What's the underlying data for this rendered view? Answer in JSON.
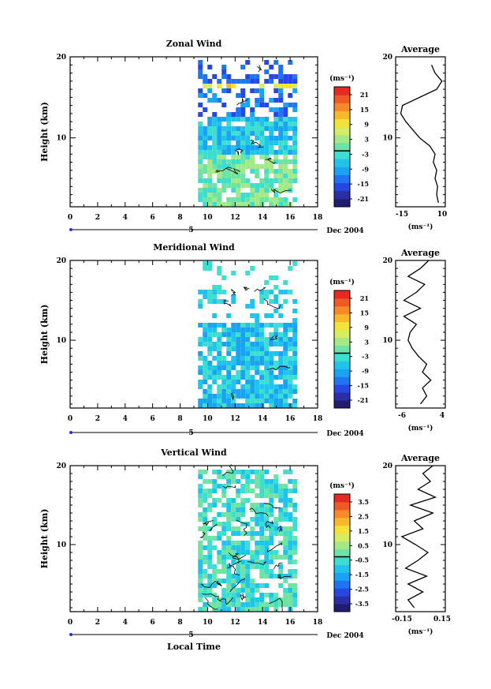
{
  "footer_label": "Local Time",
  "date_label": "Dec 2004",
  "day_marker": "5",
  "ylabel": "Height (km)",
  "avg_title": "Average",
  "unit_label": "(ms⁻¹)",
  "panel_titles": [
    "Zonal Wind",
    "Meridional Wind",
    "Vertical Wind"
  ],
  "colors": {
    "palette": [
      "#221c6e",
      "#2a2fa8",
      "#2747e0",
      "#1f74f0",
      "#1ca2f2",
      "#22c3ea",
      "#3fdcd0",
      "#6ee3a3",
      "#a5e887",
      "#d6ec62",
      "#f2e33a",
      "#f7b82c",
      "#f68a2a",
      "#ee5a26",
      "#e42a22"
    ]
  },
  "chart_data": [
    {
      "type": "heatmap",
      "title": "Zonal Wind",
      "xlabel": "",
      "ylabel": "Height (km)",
      "xlim": [
        0,
        18
      ],
      "ylim": [
        1.5,
        20
      ],
      "xticks": [
        "0",
        "2",
        "4",
        "6",
        "8",
        "10",
        "12",
        "14",
        "16",
        "18"
      ],
      "yticks": [
        "10",
        "20"
      ],
      "data_extent_x": [
        9.3,
        16.6
      ],
      "colorbar": {
        "label": "(ms⁻¹)",
        "ticks": [
          "21",
          "15",
          "9",
          "3",
          "-3",
          "-9",
          "-15",
          "-21"
        ]
      },
      "profile": {
        "title": "Average",
        "xlim": [
          -18,
          11
        ],
        "xticks": [
          "-15",
          "10"
        ],
        "xlabel": "(ms⁻¹)",
        "yticks": [
          "10",
          "20"
        ],
        "points": [
          [
            7,
            2
          ],
          [
            6,
            3
          ],
          [
            6.5,
            4
          ],
          [
            5,
            5
          ],
          [
            6,
            6
          ],
          [
            4,
            7
          ],
          [
            5,
            8
          ],
          [
            2,
            9
          ],
          [
            -4,
            10
          ],
          [
            -8,
            11
          ],
          [
            -12,
            12
          ],
          [
            -15,
            13
          ],
          [
            -14,
            14
          ],
          [
            -4,
            15
          ],
          [
            6,
            16
          ],
          [
            9,
            17
          ],
          [
            5,
            18
          ],
          [
            3,
            19
          ]
        ]
      }
    },
    {
      "type": "heatmap",
      "title": "Meridional Wind",
      "xlabel": "",
      "ylabel": "Height (km)",
      "xlim": [
        0,
        18
      ],
      "ylim": [
        1.5,
        20
      ],
      "xticks": [
        "0",
        "2",
        "4",
        "6",
        "8",
        "10",
        "12",
        "14",
        "16",
        "18"
      ],
      "yticks": [
        "10",
        "20"
      ],
      "data_extent_x": [
        9.3,
        16.6
      ],
      "colorbar": {
        "label": "(ms⁻¹)",
        "ticks": [
          "21",
          "15",
          "9",
          "3",
          "-3",
          "-9",
          "-15",
          "-21"
        ]
      },
      "profile": {
        "title": "Average",
        "xlim": [
          -7,
          5
        ],
        "xticks": [
          "-6",
          "4"
        ],
        "xlabel": "(ms⁻¹)",
        "yticks": [
          "10",
          "20"
        ],
        "points": [
          [
            -1,
            2
          ],
          [
            0.5,
            3
          ],
          [
            -0.5,
            4
          ],
          [
            1.5,
            5
          ],
          [
            -0.5,
            6
          ],
          [
            0.5,
            7
          ],
          [
            -1.5,
            8
          ],
          [
            -3,
            9
          ],
          [
            -4,
            10
          ],
          [
            -3.5,
            11
          ],
          [
            -2,
            12
          ],
          [
            -5,
            13
          ],
          [
            -1,
            14
          ],
          [
            -5,
            15
          ],
          [
            -2,
            16
          ],
          [
            0,
            17
          ],
          [
            -4,
            18
          ],
          [
            -1,
            19
          ],
          [
            1,
            20
          ]
        ]
      }
    },
    {
      "type": "heatmap",
      "title": "Vertical Wind",
      "xlabel": "Local Time",
      "ylabel": "Height (km)",
      "xlim": [
        0,
        18
      ],
      "ylim": [
        1.5,
        20
      ],
      "xticks": [
        "0",
        "2",
        "4",
        "6",
        "8",
        "10",
        "12",
        "14",
        "16",
        "18"
      ],
      "yticks": [
        "10",
        "20"
      ],
      "data_extent_x": [
        9.3,
        16.6
      ],
      "colorbar": {
        "label": "(ms⁻¹)",
        "ticks": [
          "3.5",
          "2.5",
          "1.5",
          "0.5",
          "-0.5",
          "-1.5",
          "-2.5",
          "-3.5"
        ]
      },
      "profile": {
        "title": "Average",
        "xlim": [
          -0.2,
          0.2
        ],
        "xticks": [
          "-0.15",
          "0.15"
        ],
        "xlabel": "(ms⁻¹)",
        "yticks": [
          "10",
          "20"
        ],
        "points": [
          [
            -0.05,
            2
          ],
          [
            -0.1,
            3
          ],
          [
            0.02,
            4
          ],
          [
            -0.1,
            5
          ],
          [
            0.05,
            6
          ],
          [
            -0.12,
            7
          ],
          [
            -0.02,
            8
          ],
          [
            0.06,
            9
          ],
          [
            -0.04,
            10
          ],
          [
            -0.15,
            11
          ],
          [
            0.02,
            12
          ],
          [
            -0.05,
            13
          ],
          [
            0.1,
            14
          ],
          [
            -0.08,
            15
          ],
          [
            0.12,
            16
          ],
          [
            -0.02,
            17
          ],
          [
            0.08,
            18
          ],
          [
            0.02,
            19
          ],
          [
            0.1,
            20
          ]
        ]
      }
    }
  ]
}
